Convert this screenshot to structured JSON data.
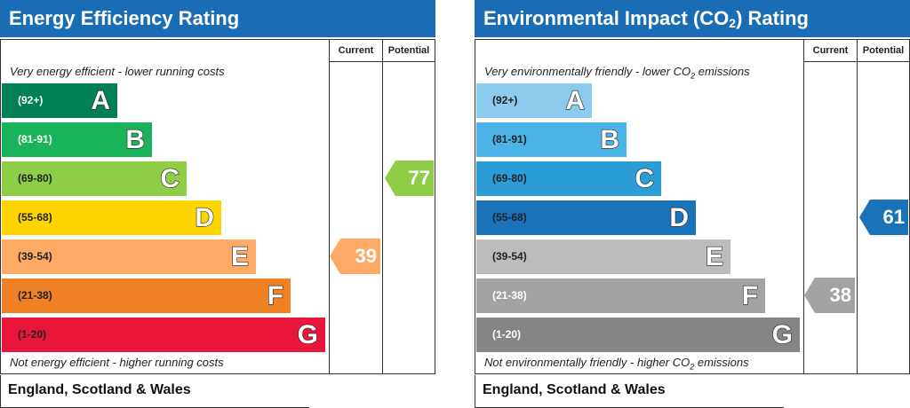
{
  "chart_data": [
    {
      "type": "bar",
      "title": "Energy Efficiency Rating",
      "columns": [
        "Current",
        "Potential"
      ],
      "top_note": "Very energy efficient - lower running costs",
      "bottom_note": "Not energy efficient - higher running costs",
      "footer": "England, Scotland & Wales",
      "categories": [
        "A",
        "B",
        "C",
        "D",
        "E",
        "F",
        "G"
      ],
      "bands": [
        {
          "letter": "A",
          "range": "(92+)",
          "color": "#008054",
          "text_color": "#ffffff"
        },
        {
          "letter": "B",
          "range": "(81-91)",
          "color": "#19b459",
          "text_color": "#ffffff"
        },
        {
          "letter": "C",
          "range": "(69-80)",
          "color": "#8dce46",
          "text_color": "#222222"
        },
        {
          "letter": "D",
          "range": "(55-68)",
          "color": "#ffd500",
          "text_color": "#222222"
        },
        {
          "letter": "E",
          "range": "(39-54)",
          "color": "#fcaa65",
          "text_color": "#222222"
        },
        {
          "letter": "F",
          "range": "(21-38)",
          "color": "#ef8023",
          "text_color": "#222222"
        },
        {
          "letter": "G",
          "range": "(1-20)",
          "color": "#e9153b",
          "text_color": "#222222"
        }
      ],
      "current": {
        "value": 39,
        "band": "E",
        "color": "#fcaa65"
      },
      "potential": {
        "value": 77,
        "band": "C",
        "color": "#8dce46"
      }
    },
    {
      "type": "bar",
      "title_main": "Environmental Impact (CO",
      "title_sub": "2",
      "title_end": ") Rating",
      "columns": [
        "Current",
        "Potential"
      ],
      "top_note_main": "Very environmentally friendly - lower CO",
      "top_note_sub": "2",
      "top_note_end": " emissions",
      "bottom_note_main": "Not environmentally friendly - higher CO",
      "bottom_note_sub": "2",
      "bottom_note_end": " emissions",
      "footer": "England, Scotland & Wales",
      "categories": [
        "A",
        "B",
        "C",
        "D",
        "E",
        "F",
        "G"
      ],
      "bands": [
        {
          "letter": "A",
          "range": "(92+)",
          "color": "#8ccbee",
          "text_color": "#222222"
        },
        {
          "letter": "B",
          "range": "(81-91)",
          "color": "#4cb3e6",
          "text_color": "#222222"
        },
        {
          "letter": "C",
          "range": "(69-80)",
          "color": "#2a9cd6",
          "text_color": "#222222"
        },
        {
          "letter": "D",
          "range": "(55-68)",
          "color": "#1a72b9",
          "text_color": "#222222"
        },
        {
          "letter": "E",
          "range": "(39-54)",
          "color": "#bcbcbc",
          "text_color": "#222222"
        },
        {
          "letter": "F",
          "range": "(21-38)",
          "color": "#a3a3a3",
          "text_color": "#ffffff"
        },
        {
          "letter": "G",
          "range": "(1-20)",
          "color": "#858585",
          "text_color": "#ffffff"
        }
      ],
      "current": {
        "value": 38,
        "band": "F",
        "color": "#a3a3a3"
      },
      "potential": {
        "value": 61,
        "band": "D",
        "color": "#1a72b9"
      }
    }
  ]
}
